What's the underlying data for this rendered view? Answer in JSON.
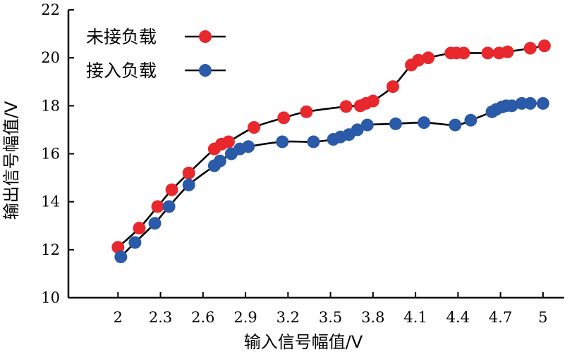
{
  "chart_data": {
    "type": "line",
    "title": "",
    "xlabel": "输入信号幅值/V",
    "ylabel": "输出信号幅值/V",
    "xlim": [
      1.65,
      5.15
    ],
    "ylim": [
      10,
      22
    ],
    "xticks": [
      2,
      2.3,
      2.6,
      2.9,
      3.2,
      3.5,
      3.8,
      4.1,
      4.4,
      4.7,
      5
    ],
    "xtick_labels": [
      "2",
      "2.3",
      "2.6",
      "2.9",
      "3.2",
      "3.5",
      "3.8",
      "4.1",
      "4.4",
      "4.7",
      "5"
    ],
    "yticks": [
      10,
      12,
      14,
      16,
      18,
      20,
      22
    ],
    "ytick_labels": [
      "10",
      "12",
      "14",
      "16",
      "18",
      "20",
      "22"
    ],
    "grid": false,
    "legend_position": "top-left",
    "series": [
      {
        "name": "未接负载",
        "color": "#e8282c",
        "x": [
          2.0,
          2.15,
          2.28,
          2.38,
          2.5,
          2.68,
          2.73,
          2.78,
          2.96,
          3.17,
          3.33,
          3.61,
          3.71,
          3.75,
          3.8,
          3.94,
          4.07,
          4.12,
          4.19,
          4.35,
          4.39,
          4.44,
          4.61,
          4.69,
          4.75,
          4.91,
          5.01
        ],
        "y": [
          12.1,
          12.9,
          13.8,
          14.5,
          15.2,
          16.2,
          16.4,
          16.5,
          17.1,
          17.5,
          17.75,
          17.97,
          18.0,
          18.1,
          18.2,
          18.8,
          19.7,
          19.9,
          20.0,
          20.2,
          20.2,
          20.2,
          20.2,
          20.2,
          20.25,
          20.4,
          20.5
        ]
      },
      {
        "name": "接入负载",
        "color": "#2b5aa8",
        "x": [
          2.02,
          2.12,
          2.26,
          2.36,
          2.5,
          2.68,
          2.72,
          2.8,
          2.86,
          2.92,
          3.16,
          3.38,
          3.52,
          3.57,
          3.63,
          3.69,
          3.76,
          3.96,
          4.16,
          4.38,
          4.49,
          4.64,
          4.67,
          4.71,
          4.74,
          4.78,
          4.85,
          4.91,
          5.0
        ],
        "y": [
          11.7,
          12.3,
          13.1,
          13.8,
          14.7,
          15.5,
          15.7,
          16.0,
          16.2,
          16.3,
          16.5,
          16.5,
          16.6,
          16.7,
          16.8,
          17.0,
          17.2,
          17.25,
          17.3,
          17.2,
          17.4,
          17.75,
          17.85,
          17.95,
          18.0,
          18.0,
          18.1,
          18.1,
          18.1
        ]
      }
    ]
  }
}
